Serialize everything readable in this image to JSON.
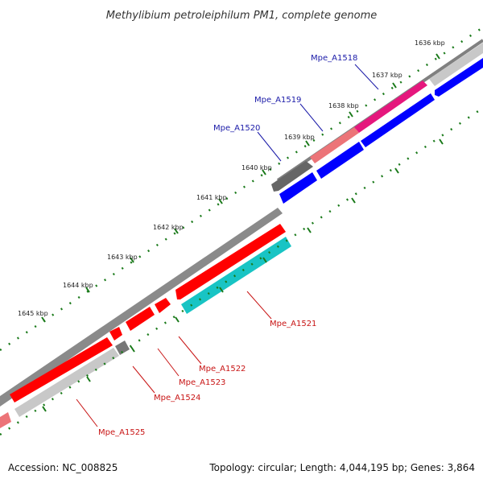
{
  "title": "Methylibium petroleiphilum PM1, complete genome",
  "footer": {
    "accession": "Accession: NC_008825",
    "summary": "Topology: circular; Length: 4,044,195 bp; Genes: 3,864"
  },
  "ticks": [
    "1636 kbp",
    "1637 kbp",
    "1638 kbp",
    "1639 kbp",
    "1640 kbp",
    "1641 kbp",
    "1642 kbp",
    "1643 kbp",
    "1644 kbp",
    "1645 kbp"
  ],
  "genes": [
    {
      "id": "Mpe_A1518",
      "label": "Mpe_A1518",
      "color": "#e5177d"
    },
    {
      "id": "Mpe_A1519",
      "label": "Mpe_A1519",
      "color": "#ec7478"
    },
    {
      "id": "Mpe_A1520",
      "label": "Mpe_A1520",
      "color": "#666666"
    },
    {
      "id": "Mpe_A1521",
      "label": "Mpe_A1521",
      "color": "#18c4c4"
    },
    {
      "id": "Mpe_A1522",
      "label": "Mpe_A1522",
      "color": "#ff0000"
    },
    {
      "id": "Mpe_A1523",
      "label": "Mpe_A1523",
      "color": "#ff0000"
    },
    {
      "id": "Mpe_A1524",
      "label": "Mpe_A1524",
      "color": "#666666"
    },
    {
      "id": "Mpe_A1525",
      "label": "Mpe_A1525",
      "color": "#c8c8c8"
    }
  ],
  "colors": {
    "forward_cds": "#ff0000",
    "reverse_cds": "#0000ff",
    "rna": "#18c4c4",
    "backbone": "#808080",
    "tick": "#1a7a1a",
    "label_blue": "#1a1aa8",
    "label_red": "#c81414"
  }
}
